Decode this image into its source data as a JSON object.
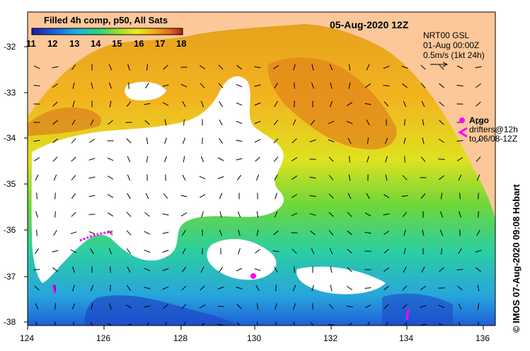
{
  "title": "05-Aug-2020 12Z",
  "colorbar": {
    "label": "Filled 4h comp, p50, All Sats",
    "ticks": [
      "11",
      "12",
      "13",
      "14",
      "15",
      "16",
      "17",
      "18"
    ]
  },
  "info": {
    "line1": "NRT00 GSL",
    "line2": "01-Aug 00:00Z",
    "line3": "0.5m/s (1kt 24h)"
  },
  "legend": {
    "argo": "Argo",
    "drifters": "drifters@12h",
    "drifters2": "to 06/08-12Z"
  },
  "credit": "© IMOS 07-Aug-2020 09:08 Hobart",
  "axes": {
    "lat_labels": [
      "-32",
      "-33",
      "-34",
      "-35",
      "-36",
      "-37",
      "-38"
    ],
    "lon_labels": [
      "124",
      "126",
      "128",
      "130",
      "132",
      "134",
      "136"
    ]
  },
  "colors": {
    "land": "#fcc89a",
    "cloud": "#ffffff",
    "argo": "#ff00ff"
  }
}
